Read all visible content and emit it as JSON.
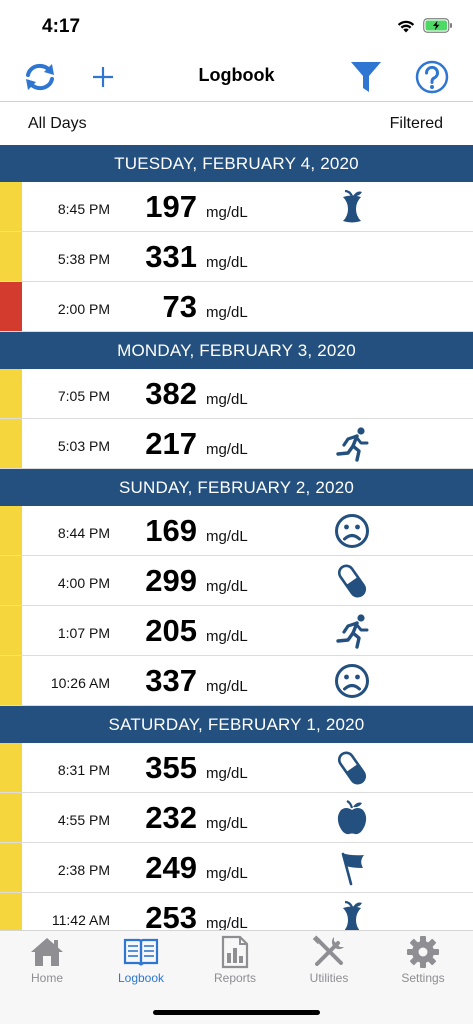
{
  "status_bar": {
    "time": "4:17"
  },
  "nav": {
    "title": "Logbook"
  },
  "filter": {
    "left": "All Days",
    "right": "Filtered"
  },
  "colors": {
    "header": "#23507e",
    "yellow": "#f5d63d",
    "red": "#d23b2d",
    "accent": "#2f76d2"
  },
  "days": [
    {
      "label": "TUESDAY, FEBRUARY 4, 2020",
      "entries": [
        {
          "time": "8:45 PM",
          "value": "197",
          "unit": "mg/dL",
          "level": "yellow",
          "icon": "apple-core-icon"
        },
        {
          "time": "5:38 PM",
          "value": "331",
          "unit": "mg/dL",
          "level": "yellow",
          "icon": ""
        },
        {
          "time": "2:00 PM",
          "value": "73",
          "unit": "mg/dL",
          "level": "red",
          "icon": ""
        }
      ]
    },
    {
      "label": "MONDAY, FEBRUARY 3, 2020",
      "entries": [
        {
          "time": "7:05 PM",
          "value": "382",
          "unit": "mg/dL",
          "level": "yellow",
          "icon": ""
        },
        {
          "time": "5:03 PM",
          "value": "217",
          "unit": "mg/dL",
          "level": "yellow",
          "icon": "runner-icon"
        }
      ]
    },
    {
      "label": "SUNDAY, FEBRUARY 2, 2020",
      "entries": [
        {
          "time": "8:44 PM",
          "value": "169",
          "unit": "mg/dL",
          "level": "yellow",
          "icon": "sad-face-icon"
        },
        {
          "time": "4:00 PM",
          "value": "299",
          "unit": "mg/dL",
          "level": "yellow",
          "icon": "pill-icon"
        },
        {
          "time": "1:07 PM",
          "value": "205",
          "unit": "mg/dL",
          "level": "yellow",
          "icon": "runner-icon"
        },
        {
          "time": "10:26 AM",
          "value": "337",
          "unit": "mg/dL",
          "level": "yellow",
          "icon": "sad-face-icon"
        }
      ]
    },
    {
      "label": "SATURDAY, FEBRUARY 1, 2020",
      "entries": [
        {
          "time": "8:31 PM",
          "value": "355",
          "unit": "mg/dL",
          "level": "yellow",
          "icon": "pill-icon"
        },
        {
          "time": "4:55 PM",
          "value": "232",
          "unit": "mg/dL",
          "level": "yellow",
          "icon": "apple-icon"
        },
        {
          "time": "2:38 PM",
          "value": "249",
          "unit": "mg/dL",
          "level": "yellow",
          "icon": "flag-icon"
        },
        {
          "time": "11:42 AM",
          "value": "253",
          "unit": "mg/dL",
          "level": "yellow",
          "icon": "apple-core-icon"
        }
      ]
    }
  ],
  "tabs": [
    {
      "label": "Home",
      "icon": "home-icon",
      "active": false
    },
    {
      "label": "Logbook",
      "icon": "book-icon",
      "active": true
    },
    {
      "label": "Reports",
      "icon": "report-icon",
      "active": false
    },
    {
      "label": "Utilities",
      "icon": "tools-icon",
      "active": false
    },
    {
      "label": "Settings",
      "icon": "gear-icon",
      "active": false
    }
  ]
}
